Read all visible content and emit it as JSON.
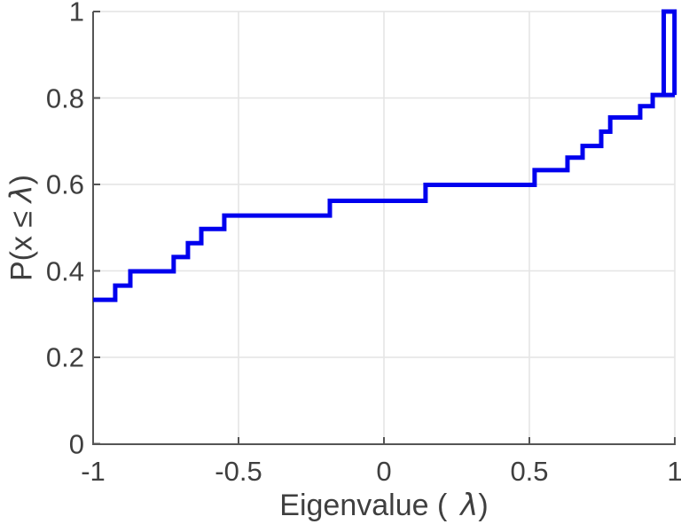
{
  "figure": {
    "background": "#ffffff",
    "axis_color": "#555555",
    "tick_label_color": "#3f3f3f",
    "grid_color": "#e4e4e4",
    "xlabel": {
      "pre": "Eigenvalue (",
      "lambda": "λ",
      "post": ")"
    },
    "ylabel": {
      "pre": "P(x ≤ ",
      "lambda": "λ",
      "post": ")"
    }
  },
  "chart_data": {
    "type": "line",
    "subtype": "empirical-cdf-staircase",
    "title": "",
    "xlabel": "Eigenvalue ( λ)",
    "ylabel": "P(x ≤ λ)",
    "xlim": [
      -1,
      1
    ],
    "ylim": [
      0,
      1
    ],
    "grid": true,
    "legend_position": "none",
    "line_color": "#0000EE",
    "line_width": 5,
    "xticks": [
      {
        "value": -1,
        "label": "-1"
      },
      {
        "value": -0.5,
        "label": "-0.5"
      },
      {
        "value": 0,
        "label": "0"
      },
      {
        "value": 0.5,
        "label": "0.5"
      },
      {
        "value": 1,
        "label": "1"
      }
    ],
    "yticks": [
      {
        "value": 0,
        "label": "0"
      },
      {
        "value": 0.2,
        "label": "0.2"
      },
      {
        "value": 0.4,
        "label": "0.4"
      },
      {
        "value": 0.6,
        "label": "0.6"
      },
      {
        "value": 0.8,
        "label": "0.8"
      },
      {
        "value": 1,
        "label": "1"
      }
    ],
    "start": {
      "x": -1.0,
      "y": 0.333
    },
    "jumps": [
      {
        "x": -0.924,
        "to": 0.366
      },
      {
        "x": -0.872,
        "to": 0.399
      },
      {
        "x": -0.723,
        "to": 0.432
      },
      {
        "x": -0.674,
        "to": 0.464
      },
      {
        "x": -0.628,
        "to": 0.497
      },
      {
        "x": -0.549,
        "to": 0.528
      },
      {
        "x": -0.186,
        "to": 0.562
      },
      {
        "x": 0.143,
        "to": 0.599
      },
      {
        "x": 0.518,
        "to": 0.633
      },
      {
        "x": 0.631,
        "to": 0.662
      },
      {
        "x": 0.683,
        "to": 0.689
      },
      {
        "x": 0.747,
        "to": 0.722
      },
      {
        "x": 0.778,
        "to": 0.755
      },
      {
        "x": 0.881,
        "to": 0.781
      },
      {
        "x": 0.924,
        "to": 0.807
      }
    ],
    "plateau_end_x": 1.0,
    "pulse": {
      "x_rise": 0.962,
      "x_fall": 0.999,
      "y_base": 0.807,
      "y_top": 1.0
    }
  }
}
